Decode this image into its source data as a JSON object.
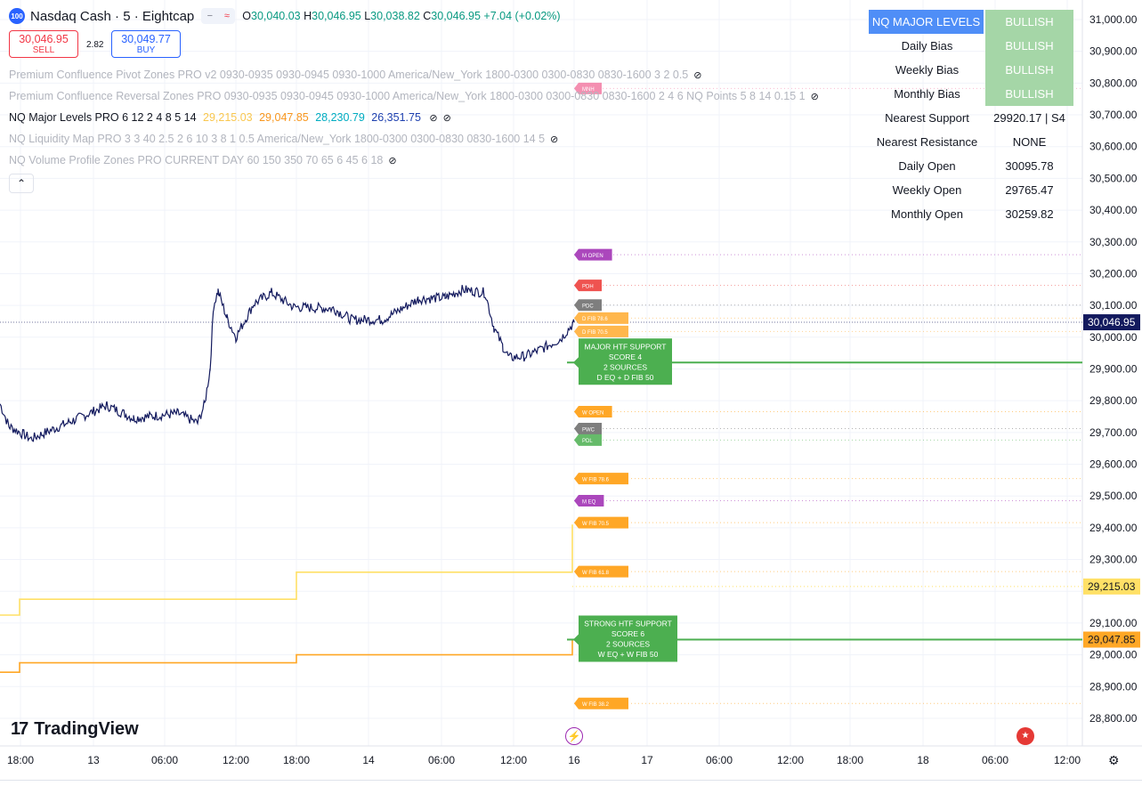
{
  "header": {
    "symbol_badge": "100",
    "symbol_title": "Nasdaq Cash · 5 · Eightcap",
    "ohlc": {
      "o_label": "O",
      "o": "30,040.03",
      "h_label": "H",
      "h": "30,046.95",
      "l_label": "L",
      "l": "30,038.82",
      "c_label": "C",
      "c": "30,046.95",
      "change": "+7.04 (+0.02%)"
    }
  },
  "trade": {
    "sell_price": "30,046.95",
    "sell_label": "SELL",
    "spread": "2.82",
    "buy_price": "30,049.77",
    "buy_label": "BUY"
  },
  "indicators": [
    {
      "text": "Premium Confluence Pivot Zones PRO v2 0930-0935 0930-0945 0930-1000 America/New_York 1800-0300 0300-0830 0830-1600 3 2 0.5",
      "active": false
    },
    {
      "text": "Premium Confluence Reversal Zones PRO 0930-0935 0930-0945 0930-1000 America/New_York 1800-0300 0300-0830 0830-1600 2 4 6 NQ Points 5 8 14 0.15 1",
      "active": false
    },
    {
      "text": "NQ Major Levels PRO 6 12 2 4 8 5 14",
      "active": true,
      "v1": "29,215.03",
      "v2": "29,047.85",
      "v3": "28,230.79",
      "v4": "26,351.75"
    },
    {
      "text": "NQ Liquidity Map PRO 3 3 40 2.5 2 6 10 3 8 1 0.5 America/New_York 1800-0300 0300-0830 0830-1600 14 5",
      "active": false
    },
    {
      "text": "NQ Volume Profile Zones PRO CURRENT DAY 60 150 350 70 65 6 45 6 18",
      "active": false
    }
  ],
  "panel": {
    "header_label": "NQ MAJOR LEVELS",
    "header_value": "BULLISH",
    "rows": [
      {
        "label": "Daily Bias",
        "value": "BULLISH",
        "bull": true
      },
      {
        "label": "Weekly Bias",
        "value": "BULLISH",
        "bull": true
      },
      {
        "label": "Monthly Bias",
        "value": "BULLISH",
        "bull": true
      },
      {
        "label": "Nearest Support",
        "value": "29920.17 | S4",
        "bull": false
      },
      {
        "label": "Nearest Resistance",
        "value": "NONE",
        "bull": false
      },
      {
        "label": "Daily Open",
        "value": "30095.78",
        "bull": false
      },
      {
        "label": "Weekly Open",
        "value": "29765.47",
        "bull": false
      },
      {
        "label": "Monthly Open",
        "value": "30259.82",
        "bull": false
      }
    ]
  },
  "price_axis": {
    "ticks": [
      "31,000.00",
      "30,900.00",
      "30,800.00",
      "30,700.00",
      "30,600.00",
      "30,500.00",
      "30,400.00",
      "30,300.00",
      "30,200.00",
      "30,100.00",
      "30,000.00",
      "29,900.00",
      "29,800.00",
      "29,700.00",
      "29,600.00",
      "29,500.00",
      "29,400.00",
      "29,300.00",
      "29,100.00",
      "29,000.00",
      "28,900.00",
      "28,800.00"
    ],
    "tick_values": [
      31000,
      30900,
      30800,
      30700,
      30600,
      30500,
      30400,
      30300,
      30200,
      30100,
      30000,
      29900,
      29800,
      29700,
      29600,
      29500,
      29400,
      29300,
      29100,
      29000,
      28900,
      28800
    ],
    "current_price": "30,046.95",
    "label_yellow": "29,215.03",
    "label_orange": "29,047.85"
  },
  "time_axis": [
    "18:00",
    "13",
    "06:00",
    "12:00",
    "18:00",
    "14",
    "06:00",
    "12:00",
    "16",
    "17",
    "06:00",
    "12:00",
    "18:00",
    "18",
    "06:00",
    "12:00"
  ],
  "level_tags": [
    {
      "text": "MNH",
      "price": 30783,
      "color": "#f48fb1"
    },
    {
      "text": "M OPEN",
      "price": 30259.82,
      "color": "#ab47bc"
    },
    {
      "text": "PDH",
      "price": 30163,
      "color": "#ef5350"
    },
    {
      "text": "PDC",
      "price": 30101,
      "color": "#7e7e7e"
    },
    {
      "text": "D FIB 78.6",
      "price": 30060,
      "color": "#ffb74d"
    },
    {
      "text": "D FIB 70.5",
      "price": 30018,
      "color": "#ffb74d"
    },
    {
      "text": "W OPEN",
      "price": 29765.47,
      "color": "#ffa726"
    },
    {
      "text": "PWC",
      "price": 29712,
      "color": "#7e7e7e"
    },
    {
      "text": "PDL",
      "price": 29676,
      "color": "#66bb6a"
    },
    {
      "text": "W FIB 78.6",
      "price": 29555,
      "color": "#ffa726"
    },
    {
      "text": "M EQ",
      "price": 29485,
      "color": "#ab47bc"
    },
    {
      "text": "W FIB 70.5",
      "price": 29416,
      "color": "#ffa726"
    },
    {
      "text": "W FIB 61.8",
      "price": 29262,
      "color": "#ffa726"
    },
    {
      "text": "W FIB 38.2",
      "price": 28847,
      "color": "#ffa726"
    }
  ],
  "zones": [
    {
      "title": "MAJOR HTF SUPPORT",
      "score": "SCORE 4",
      "sources": "2 SOURCES",
      "detail": "D EQ + D FIB 50",
      "price": 29920.17
    },
    {
      "title": "STRONG HTF SUPPORT",
      "score": "SCORE 6",
      "sources": "2 SOURCES",
      "detail": "W EQ + W FIB 50",
      "price": 29047.85
    }
  ],
  "colors": {
    "green": "#4caf50",
    "yellow": "#ffe066",
    "orange": "#ffa726",
    "candle": "#131a5e"
  },
  "branding": {
    "logo_mark": "17",
    "logo_text": "TradingView"
  },
  "icons": [
    "lightning-icon",
    "us-flag-icon",
    "settings-icon",
    "eye-off-icon",
    "chevron-up-icon"
  ]
}
